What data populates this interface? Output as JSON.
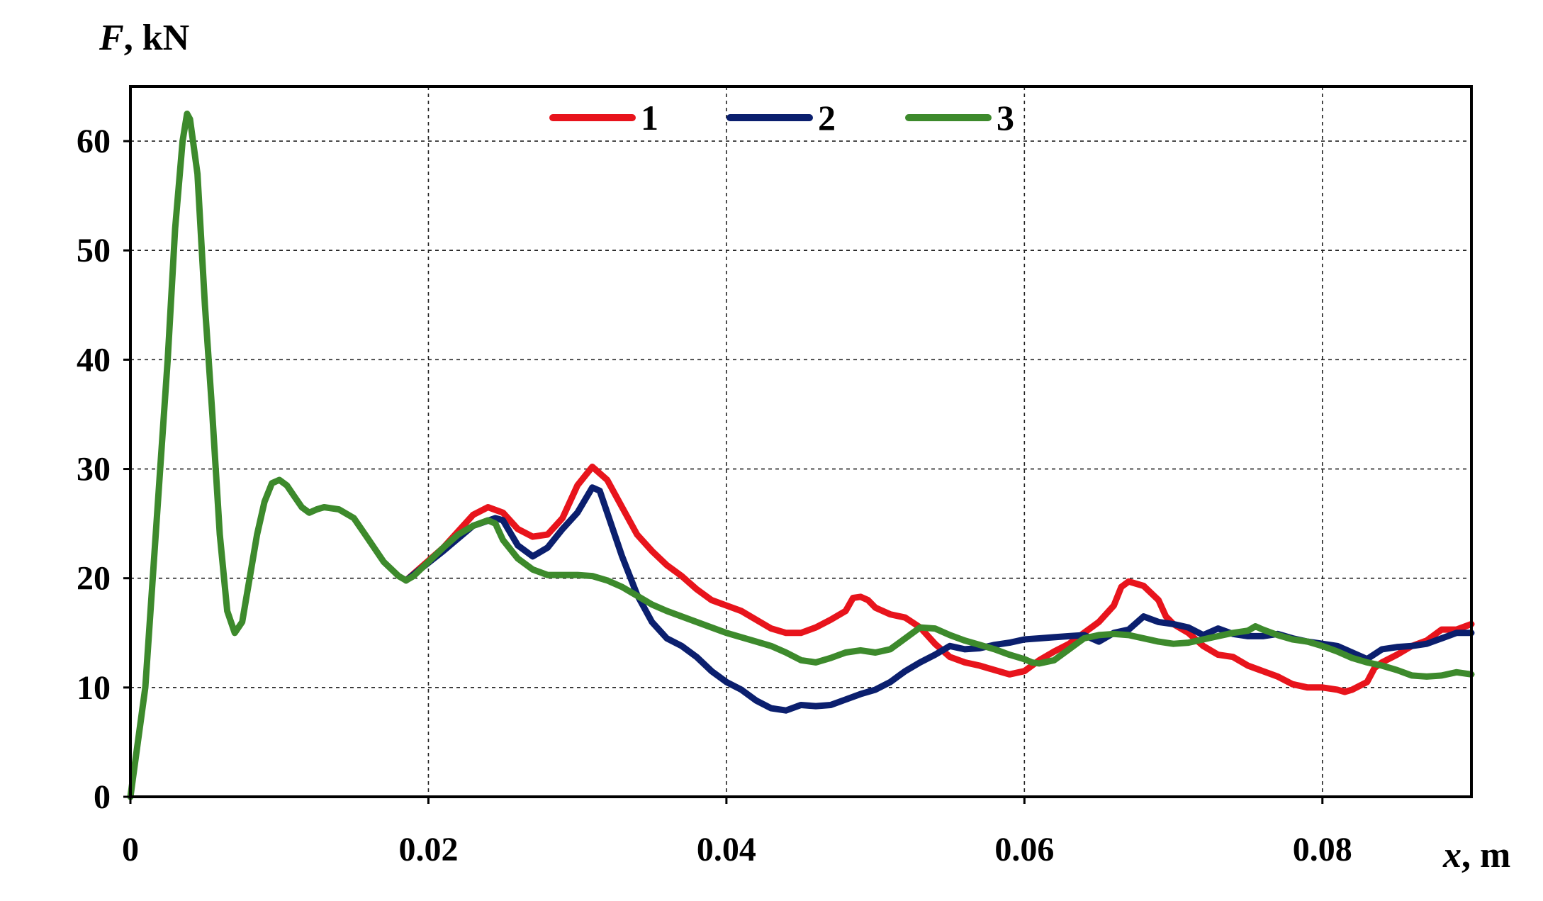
{
  "chart_data": {
    "type": "line",
    "xlabel": {
      "symbol": "x",
      "unit": ", m"
    },
    "ylabel": {
      "symbol": "F",
      "unit": ", kN"
    },
    "xlim": [
      0,
      0.09
    ],
    "ylim": [
      0,
      65
    ],
    "xticks": [
      0,
      0.02,
      0.04,
      0.06,
      0.08
    ],
    "xtick_labels": [
      "0",
      "0.02",
      "0.04",
      "0.06",
      "0.08"
    ],
    "yticks": [
      0,
      10,
      20,
      30,
      40,
      50,
      60
    ],
    "ytick_labels": [
      "0",
      "10",
      "20",
      "30",
      "40",
      "50",
      "60"
    ],
    "grid": true,
    "legend_position": "top-center",
    "series": [
      {
        "name": "1",
        "color": "#e8141c",
        "points": [
          [
            0.0185,
            19.8
          ],
          [
            0.021,
            22.8
          ],
          [
            0.023,
            25.8
          ],
          [
            0.024,
            26.5
          ],
          [
            0.025,
            26.0
          ],
          [
            0.026,
            24.5
          ],
          [
            0.027,
            23.8
          ],
          [
            0.028,
            24.0
          ],
          [
            0.029,
            25.5
          ],
          [
            0.03,
            28.5
          ],
          [
            0.031,
            30.2
          ],
          [
            0.032,
            29.0
          ],
          [
            0.033,
            26.5
          ],
          [
            0.034,
            24.0
          ],
          [
            0.035,
            22.5
          ],
          [
            0.036,
            21.2
          ],
          [
            0.037,
            20.2
          ],
          [
            0.038,
            19.0
          ],
          [
            0.039,
            18.0
          ],
          [
            0.04,
            17.5
          ],
          [
            0.041,
            17.0
          ],
          [
            0.042,
            16.2
          ],
          [
            0.043,
            15.4
          ],
          [
            0.044,
            15.0
          ],
          [
            0.045,
            15.0
          ],
          [
            0.046,
            15.5
          ],
          [
            0.047,
            16.2
          ],
          [
            0.048,
            17.0
          ],
          [
            0.0485,
            18.2
          ],
          [
            0.049,
            18.3
          ],
          [
            0.0495,
            18.0
          ],
          [
            0.05,
            17.3
          ],
          [
            0.051,
            16.7
          ],
          [
            0.052,
            16.4
          ],
          [
            0.053,
            15.5
          ],
          [
            0.054,
            14.0
          ],
          [
            0.055,
            12.8
          ],
          [
            0.056,
            12.3
          ],
          [
            0.057,
            12.0
          ],
          [
            0.058,
            11.6
          ],
          [
            0.059,
            11.2
          ],
          [
            0.06,
            11.5
          ],
          [
            0.061,
            12.5
          ],
          [
            0.062,
            13.3
          ],
          [
            0.063,
            14.0
          ],
          [
            0.064,
            15.0
          ],
          [
            0.065,
            16.0
          ],
          [
            0.066,
            17.5
          ],
          [
            0.0665,
            19.2
          ],
          [
            0.067,
            19.7
          ],
          [
            0.068,
            19.3
          ],
          [
            0.069,
            18.0
          ],
          [
            0.0695,
            16.5
          ],
          [
            0.07,
            15.8
          ],
          [
            0.071,
            15.0
          ],
          [
            0.072,
            13.8
          ],
          [
            0.073,
            13.0
          ],
          [
            0.074,
            12.8
          ],
          [
            0.075,
            12.0
          ],
          [
            0.076,
            11.5
          ],
          [
            0.077,
            11.0
          ],
          [
            0.078,
            10.3
          ],
          [
            0.079,
            10.0
          ],
          [
            0.08,
            10.0
          ],
          [
            0.081,
            9.8
          ],
          [
            0.0815,
            9.6
          ],
          [
            0.082,
            9.8
          ],
          [
            0.083,
            10.5
          ],
          [
            0.0835,
            11.8
          ],
          [
            0.084,
            12.3
          ],
          [
            0.085,
            13.0
          ],
          [
            0.086,
            13.8
          ],
          [
            0.087,
            14.3
          ],
          [
            0.088,
            15.3
          ],
          [
            0.089,
            15.3
          ],
          [
            0.09,
            15.8
          ]
        ]
      },
      {
        "name": "2",
        "color": "#0b1f6e",
        "points": [
          [
            0.0185,
            19.8
          ],
          [
            0.021,
            22.5
          ],
          [
            0.023,
            24.8
          ],
          [
            0.0245,
            25.5
          ],
          [
            0.025,
            25.3
          ],
          [
            0.026,
            23.0
          ],
          [
            0.027,
            22.0
          ],
          [
            0.028,
            22.8
          ],
          [
            0.029,
            24.5
          ],
          [
            0.03,
            26.0
          ],
          [
            0.031,
            28.3
          ],
          [
            0.0315,
            28.0
          ],
          [
            0.032,
            26.0
          ],
          [
            0.033,
            22.0
          ],
          [
            0.034,
            18.5
          ],
          [
            0.035,
            16.0
          ],
          [
            0.036,
            14.5
          ],
          [
            0.037,
            13.8
          ],
          [
            0.038,
            12.8
          ],
          [
            0.039,
            11.5
          ],
          [
            0.04,
            10.5
          ],
          [
            0.041,
            9.8
          ],
          [
            0.042,
            8.8
          ],
          [
            0.043,
            8.1
          ],
          [
            0.044,
            7.9
          ],
          [
            0.045,
            8.4
          ],
          [
            0.046,
            8.3
          ],
          [
            0.047,
            8.4
          ],
          [
            0.048,
            8.9
          ],
          [
            0.049,
            9.4
          ],
          [
            0.05,
            9.8
          ],
          [
            0.051,
            10.5
          ],
          [
            0.052,
            11.5
          ],
          [
            0.053,
            12.3
          ],
          [
            0.054,
            13.0
          ],
          [
            0.055,
            13.8
          ],
          [
            0.056,
            13.5
          ],
          [
            0.057,
            13.6
          ],
          [
            0.058,
            13.9
          ],
          [
            0.059,
            14.1
          ],
          [
            0.06,
            14.4
          ],
          [
            0.061,
            14.5
          ],
          [
            0.062,
            14.6
          ],
          [
            0.063,
            14.7
          ],
          [
            0.064,
            14.8
          ],
          [
            0.065,
            14.2
          ],
          [
            0.066,
            15.0
          ],
          [
            0.067,
            15.3
          ],
          [
            0.068,
            16.5
          ],
          [
            0.069,
            16.0
          ],
          [
            0.07,
            15.8
          ],
          [
            0.071,
            15.5
          ],
          [
            0.072,
            14.8
          ],
          [
            0.073,
            15.4
          ],
          [
            0.074,
            14.9
          ],
          [
            0.075,
            14.7
          ],
          [
            0.076,
            14.7
          ],
          [
            0.077,
            14.9
          ],
          [
            0.078,
            14.5
          ],
          [
            0.079,
            14.2
          ],
          [
            0.08,
            14.0
          ],
          [
            0.081,
            13.8
          ],
          [
            0.082,
            13.2
          ],
          [
            0.083,
            12.6
          ],
          [
            0.084,
            13.5
          ],
          [
            0.085,
            13.7
          ],
          [
            0.086,
            13.8
          ],
          [
            0.087,
            14.0
          ],
          [
            0.088,
            14.5
          ],
          [
            0.089,
            15.0
          ],
          [
            0.09,
            15.0
          ]
        ]
      },
      {
        "name": "3",
        "color": "#3d8a2c",
        "points": [
          [
            0.0,
            0.0
          ],
          [
            0.0005,
            5.0
          ],
          [
            0.001,
            10.0
          ],
          [
            0.0015,
            20.0
          ],
          [
            0.002,
            30.0
          ],
          [
            0.0025,
            40.0
          ],
          [
            0.003,
            52.0
          ],
          [
            0.0035,
            60.0
          ],
          [
            0.0038,
            62.5
          ],
          [
            0.004,
            62.0
          ],
          [
            0.0045,
            57.0
          ],
          [
            0.005,
            45.0
          ],
          [
            0.0055,
            35.0
          ],
          [
            0.006,
            24.0
          ],
          [
            0.0065,
            17.0
          ],
          [
            0.007,
            15.0
          ],
          [
            0.0075,
            16.0
          ],
          [
            0.008,
            20.0
          ],
          [
            0.0085,
            24.0
          ],
          [
            0.009,
            27.0
          ],
          [
            0.0095,
            28.7
          ],
          [
            0.01,
            29.0
          ],
          [
            0.0105,
            28.5
          ],
          [
            0.011,
            27.5
          ],
          [
            0.0115,
            26.5
          ],
          [
            0.012,
            26.0
          ],
          [
            0.0125,
            26.3
          ],
          [
            0.013,
            26.5
          ],
          [
            0.014,
            26.3
          ],
          [
            0.015,
            25.5
          ],
          [
            0.016,
            23.5
          ],
          [
            0.017,
            21.5
          ],
          [
            0.018,
            20.2
          ],
          [
            0.0185,
            19.8
          ],
          [
            0.019,
            20.2
          ],
          [
            0.02,
            21.5
          ],
          [
            0.021,
            22.8
          ],
          [
            0.022,
            24.0
          ],
          [
            0.023,
            24.8
          ],
          [
            0.024,
            25.3
          ],
          [
            0.0245,
            25.0
          ],
          [
            0.025,
            23.5
          ],
          [
            0.026,
            21.8
          ],
          [
            0.027,
            20.8
          ],
          [
            0.028,
            20.3
          ],
          [
            0.029,
            20.3
          ],
          [
            0.03,
            20.3
          ],
          [
            0.031,
            20.2
          ],
          [
            0.032,
            19.8
          ],
          [
            0.033,
            19.2
          ],
          [
            0.034,
            18.4
          ],
          [
            0.035,
            17.6
          ],
          [
            0.036,
            17.0
          ],
          [
            0.037,
            16.5
          ],
          [
            0.038,
            16.0
          ],
          [
            0.039,
            15.5
          ],
          [
            0.04,
            15.0
          ],
          [
            0.041,
            14.6
          ],
          [
            0.042,
            14.2
          ],
          [
            0.043,
            13.8
          ],
          [
            0.044,
            13.2
          ],
          [
            0.045,
            12.5
          ],
          [
            0.046,
            12.3
          ],
          [
            0.047,
            12.7
          ],
          [
            0.048,
            13.2
          ],
          [
            0.049,
            13.4
          ],
          [
            0.05,
            13.2
          ],
          [
            0.051,
            13.5
          ],
          [
            0.052,
            14.5
          ],
          [
            0.053,
            15.5
          ],
          [
            0.054,
            15.4
          ],
          [
            0.055,
            14.8
          ],
          [
            0.056,
            14.3
          ],
          [
            0.057,
            13.9
          ],
          [
            0.058,
            13.5
          ],
          [
            0.059,
            13.0
          ],
          [
            0.06,
            12.6
          ],
          [
            0.0605,
            12.3
          ],
          [
            0.061,
            12.2
          ],
          [
            0.062,
            12.5
          ],
          [
            0.063,
            13.5
          ],
          [
            0.064,
            14.5
          ],
          [
            0.065,
            14.8
          ],
          [
            0.066,
            14.9
          ],
          [
            0.067,
            14.8
          ],
          [
            0.068,
            14.5
          ],
          [
            0.069,
            14.2
          ],
          [
            0.07,
            14.0
          ],
          [
            0.071,
            14.1
          ],
          [
            0.072,
            14.4
          ],
          [
            0.073,
            14.7
          ],
          [
            0.074,
            15.0
          ],
          [
            0.075,
            15.2
          ],
          [
            0.0755,
            15.6
          ],
          [
            0.076,
            15.3
          ],
          [
            0.077,
            14.8
          ],
          [
            0.078,
            14.4
          ],
          [
            0.079,
            14.2
          ],
          [
            0.08,
            13.8
          ],
          [
            0.081,
            13.3
          ],
          [
            0.082,
            12.7
          ],
          [
            0.083,
            12.3
          ],
          [
            0.084,
            12.0
          ],
          [
            0.085,
            11.6
          ],
          [
            0.086,
            11.1
          ],
          [
            0.087,
            11.0
          ],
          [
            0.088,
            11.1
          ],
          [
            0.089,
            11.4
          ],
          [
            0.09,
            11.2
          ]
        ]
      }
    ]
  }
}
